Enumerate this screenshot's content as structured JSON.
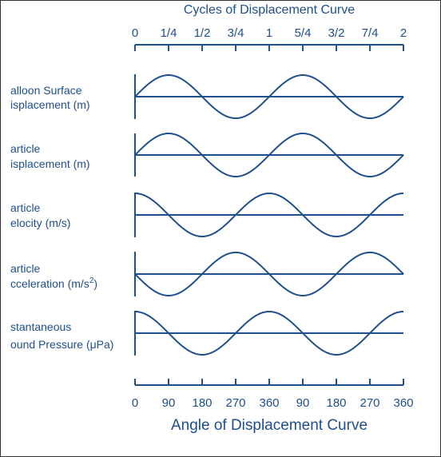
{
  "top_axis": {
    "title": "Cycles of Displacement Curve",
    "tick_labels": [
      "0",
      "1/4",
      "1/2",
      "3/4",
      "1",
      "5/4",
      "3/2",
      "7/4",
      "2"
    ]
  },
  "bottom_axis": {
    "title": "Angle of Displacement Curve",
    "tick_labels": [
      "0",
      "90",
      "180",
      "270",
      "360",
      "90",
      "180",
      "270",
      "360"
    ]
  },
  "curves": [
    {
      "label_line1": "alloon Surface",
      "label_line2": "isplacement (m)",
      "phase_deg": 0
    },
    {
      "label_line1": "article",
      "label_line2": "isplacement (m)",
      "phase_deg": 0
    },
    {
      "label_line1": "article",
      "label_line2": "elocity (m/s)",
      "phase_deg": 90
    },
    {
      "label_line1": "article",
      "label_line2": "cceleration (m/s",
      "label_sup": "2",
      "label_suffix": ")",
      "phase_deg": 180
    },
    {
      "label_line1": "stantaneous",
      "label_line2": "ound Pressure (μPa)",
      "phase_deg": 90
    }
  ],
  "colors": {
    "ink": "#1e4f8f",
    "frame": "#333333",
    "background": "#ffffff"
  }
}
